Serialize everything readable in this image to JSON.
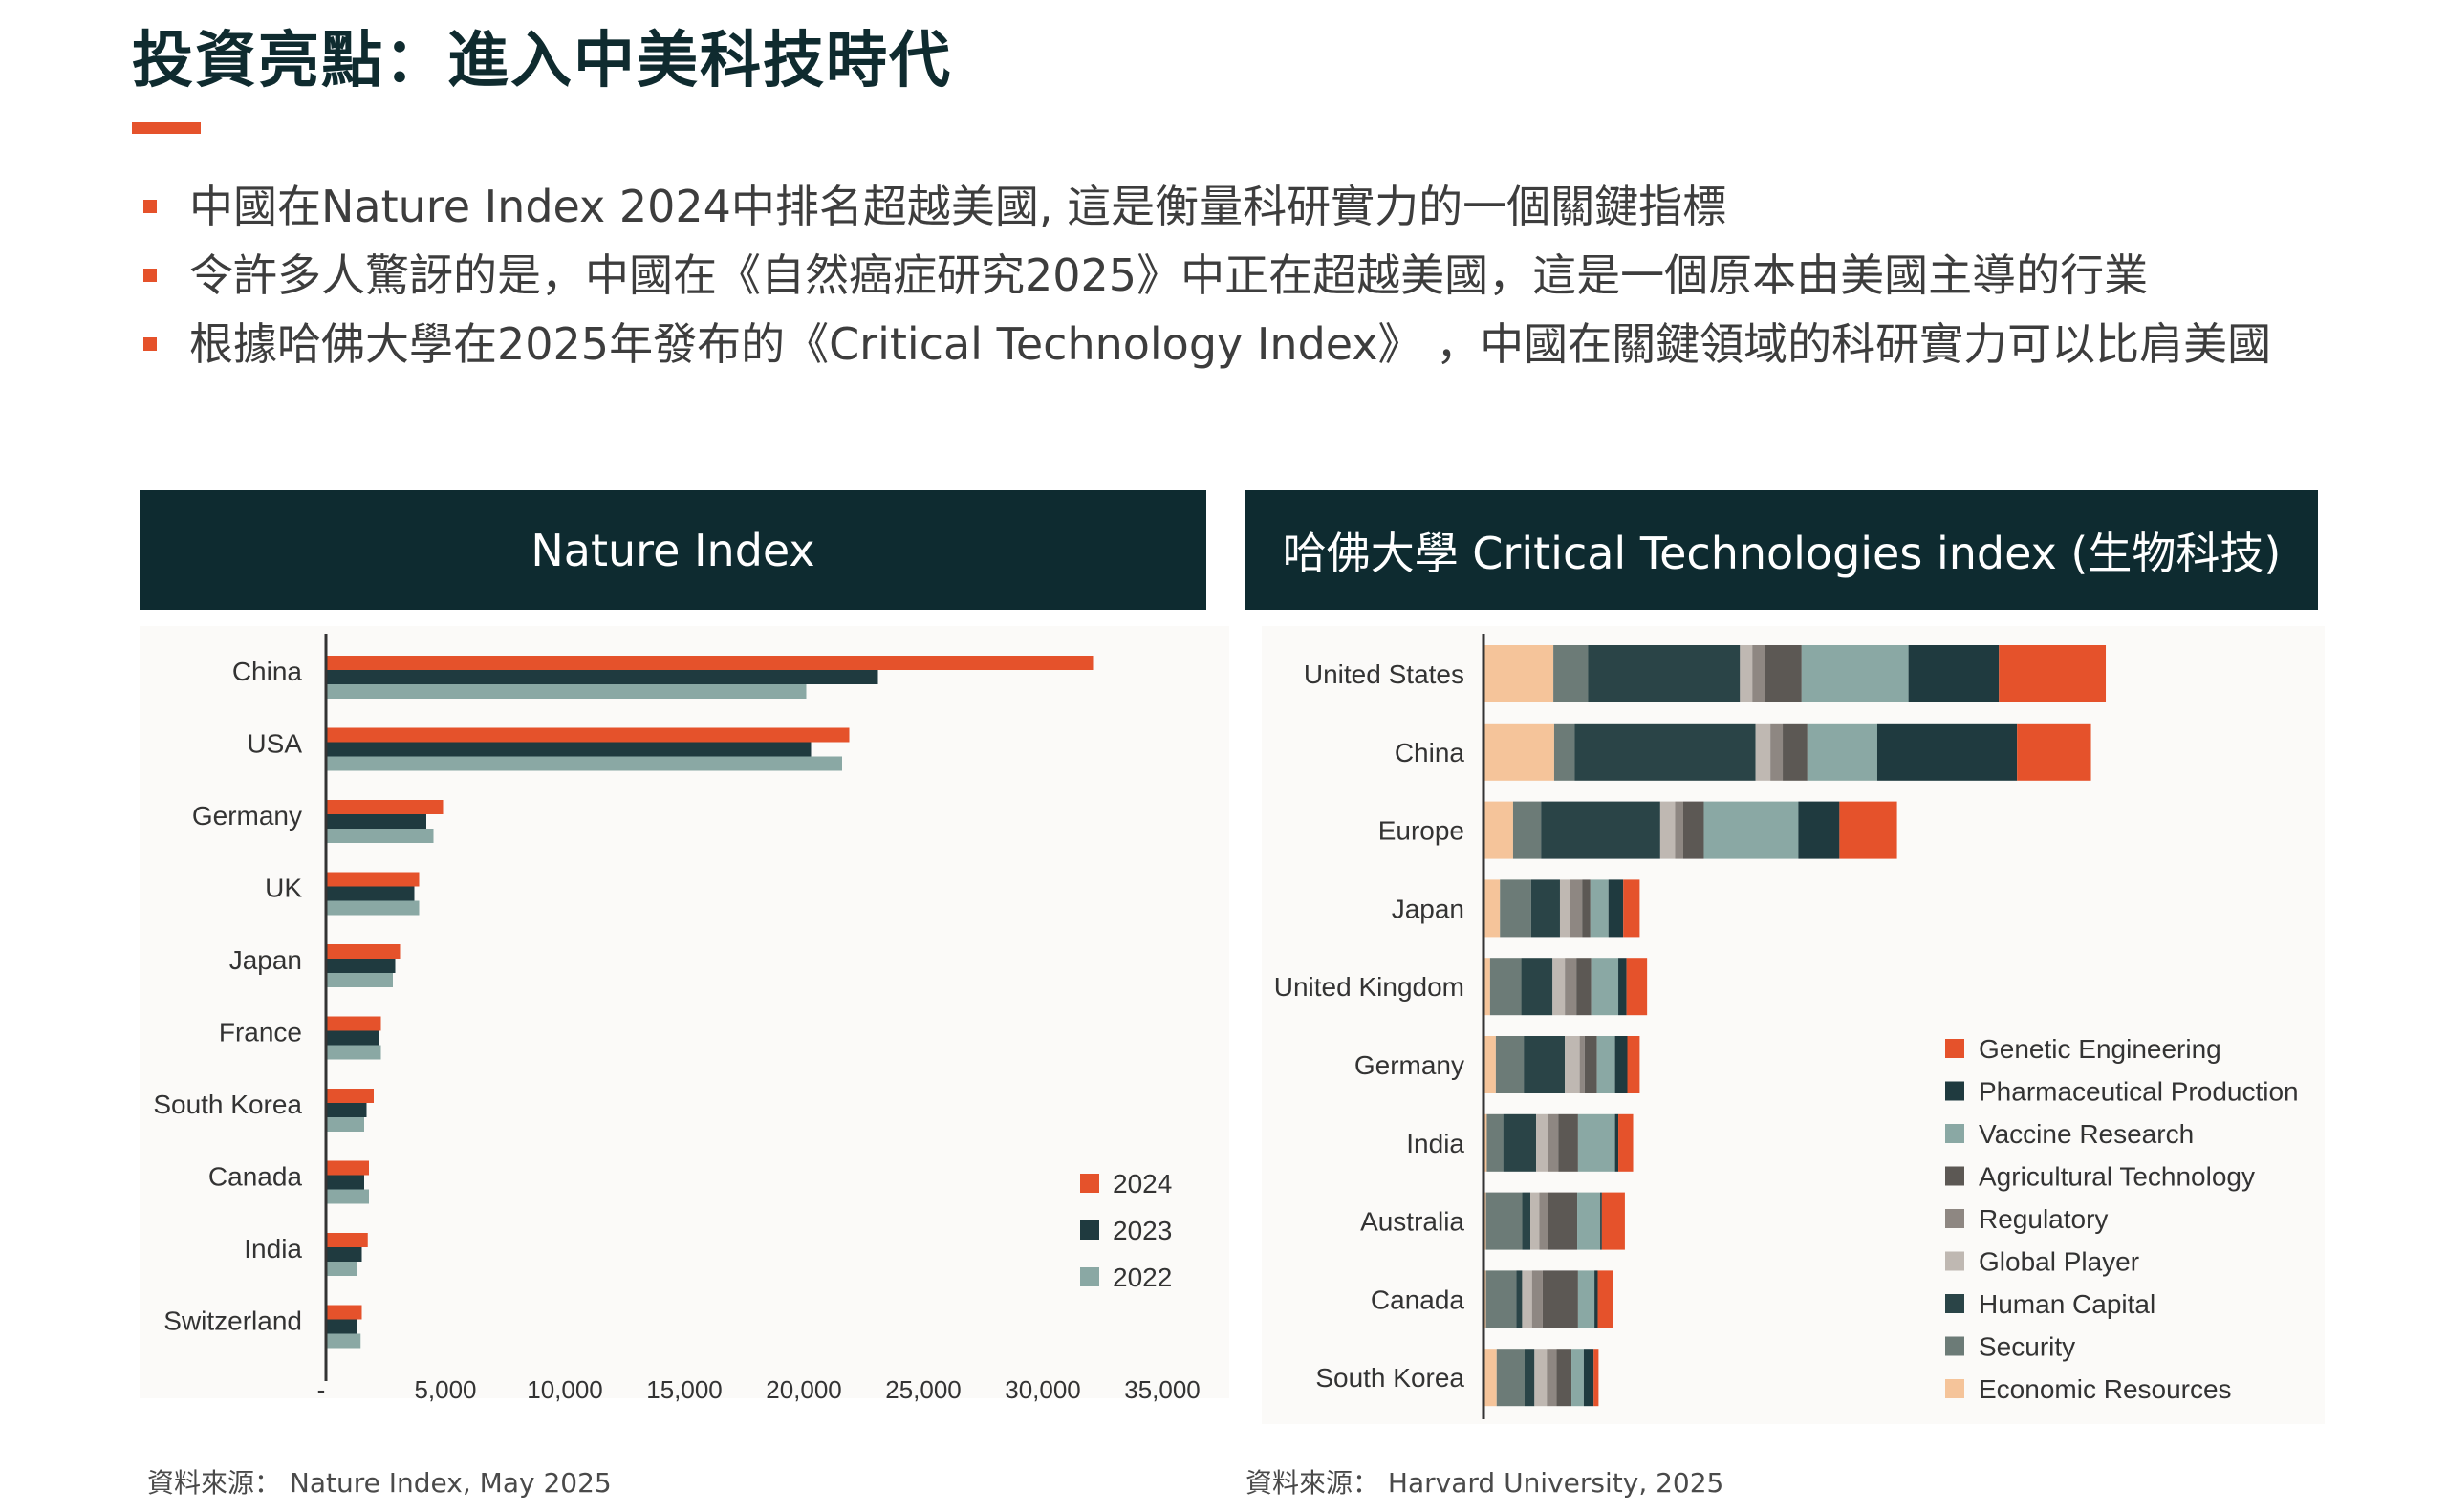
{
  "page": {
    "title": "投資亮點：進入中美科技時代",
    "bullets": [
      "中國在Nature Index 2024中排名超越美國, 這是衡量科研實力的一個關鍵指標",
      "令許多人驚訝的是，中國在《自然癌症研究2025》中正在超越美國，這是一個原本由美國主導的行業",
      "根據哈佛大學在2025年發布的《Critical Technology Index》 ，中國在關鍵領域的科研實力可以比肩美國"
    ],
    "accent_color": "#e5522b",
    "header_color": "#0e2b30"
  },
  "left_panel": {
    "header": "Nature Index",
    "source_label": "資料來源：",
    "source_text": "Nature Index, May 2025"
  },
  "right_panel": {
    "header": "哈佛大學 Critical Technologies index (生物科技)",
    "source_label": "資料來源：",
    "source_text": "Harvard University, 2025"
  },
  "chart_data": [
    {
      "type": "bar",
      "orientation": "horizontal",
      "title": "Nature Index",
      "categories": [
        "China",
        "USA",
        "Germany",
        "UK",
        "Japan",
        "France",
        "South Korea",
        "Canada",
        "India",
        "Switzerland"
      ],
      "series": [
        {
          "name": "2024",
          "color": "#e5522b",
          "values": [
            32100,
            21900,
            4900,
            3900,
            3100,
            2300,
            2000,
            1800,
            1750,
            1500
          ]
        },
        {
          "name": "2023",
          "color": "#1f3a3f",
          "values": [
            23100,
            20300,
            4200,
            3700,
            2900,
            2200,
            1700,
            1600,
            1500,
            1300
          ]
        },
        {
          "name": "2022",
          "color": "#8aa8a4",
          "values": [
            20100,
            21600,
            4500,
            3900,
            2800,
            2300,
            1600,
            1800,
            1300,
            1450
          ]
        }
      ],
      "x_ticks": [
        "-",
        "5,000",
        "10,000",
        "15,000",
        "20,000",
        "25,000",
        "30,000",
        "35,000"
      ],
      "xlim": [
        0,
        35000
      ],
      "legend_position": "bottom-right",
      "grid": false
    },
    {
      "type": "bar",
      "orientation": "horizontal",
      "stacked": true,
      "title": "哈佛大學 Critical Technologies index (生物科技)",
      "categories": [
        "United States",
        "China",
        "Europe",
        "Japan",
        "United Kingdom",
        "Germany",
        "India",
        "Australia",
        "Canada",
        "South Korea"
      ],
      "stack_order": [
        "Economic Resources",
        "Security",
        "Human Capital",
        "Global Player",
        "Regulatory",
        "Agricultural Technology",
        "Vaccine Research",
        "Pharmaceutical Production",
        "Genetic Engineering"
      ],
      "series": [
        {
          "name": "Genetic Engineering",
          "color": "#e5522b",
          "values": [
            13,
            9,
            7,
            2,
            2.5,
            1.5,
            1.8,
            2.8,
            1.8,
            0.6
          ]
        },
        {
          "name": "Pharmaceutical Production",
          "color": "#1f3a3f",
          "values": [
            11,
            17,
            5,
            1.8,
            1,
            1.5,
            0.4,
            0.2,
            0.4,
            1.2
          ]
        },
        {
          "name": "Vaccine Research",
          "color": "#8aa8a4",
          "values": [
            13,
            8.5,
            11.5,
            2.2,
            3.3,
            2.2,
            4.5,
            2.8,
            2,
            1.5
          ]
        },
        {
          "name": "Agricultural Technology",
          "color": "#5c5854",
          "values": [
            4.5,
            3,
            2.5,
            1,
            1.8,
            1.5,
            2.4,
            3.6,
            4.3,
            1.8
          ]
        },
        {
          "name": "Regulatory",
          "color": "#8e8782",
          "values": [
            1.5,
            1.5,
            1,
            1.5,
            1.4,
            0.6,
            1.2,
            1,
            1.3,
            1.2
          ]
        },
        {
          "name": "Global Player",
          "color": "#bfb8b2",
          "values": [
            1.5,
            1.8,
            1.8,
            1.2,
            1.5,
            1.8,
            1.5,
            1.1,
            1.2,
            1.5
          ]
        },
        {
          "name": "Human Capital",
          "color": "#2a4447",
          "values": [
            18.5,
            22,
            14.5,
            3.5,
            3.8,
            5,
            4,
            1,
            0.7,
            1.2
          ]
        },
        {
          "name": "Security",
          "color": "#6c7b77",
          "values": [
            4.2,
            2.5,
            3.4,
            3.8,
            3.8,
            3.4,
            2,
            4.4,
            3.7,
            3.4
          ]
        },
        {
          "name": "Economic Resources",
          "color": "#f5c49a",
          "values": [
            8.5,
            8.6,
            3.6,
            2,
            0.8,
            1.5,
            0.4,
            0.3,
            0.3,
            1.6
          ]
        }
      ],
      "legend_position": "right",
      "grid": false
    }
  ]
}
